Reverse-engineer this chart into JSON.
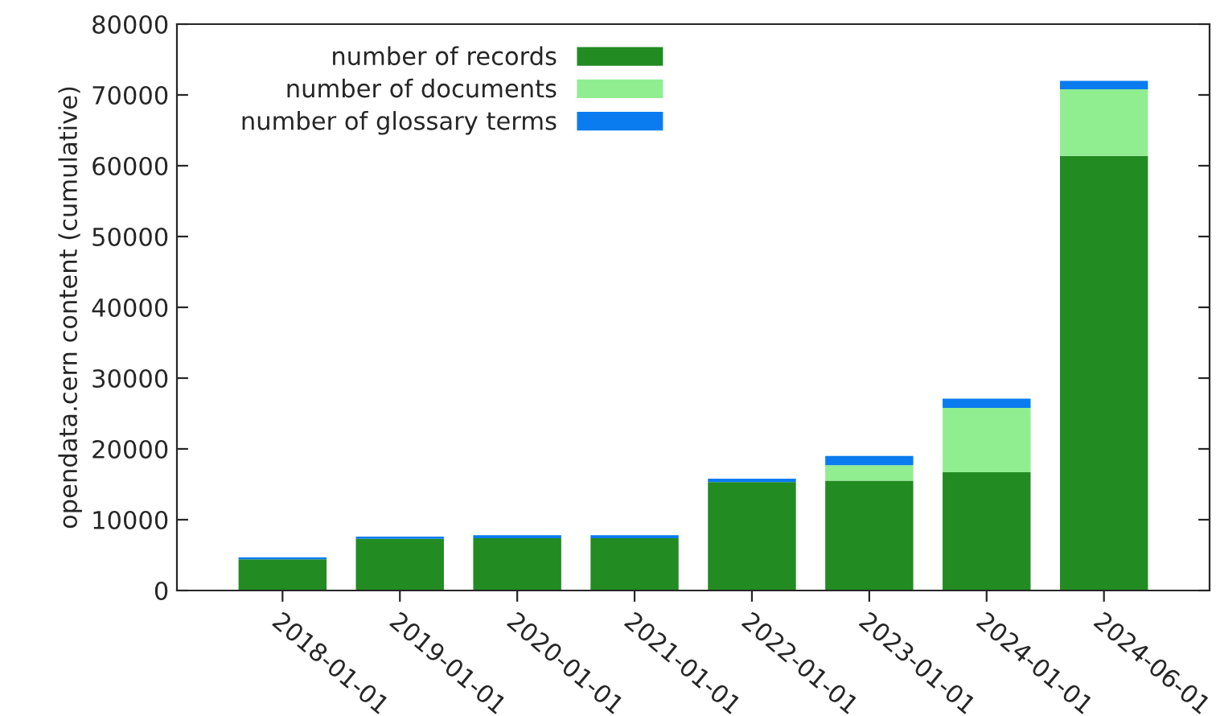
{
  "chart_data": {
    "type": "bar",
    "stacked": true,
    "ylabel": "opendata.cern content (cumulative)",
    "categories": [
      "2018-01-01",
      "2019-01-01",
      "2020-01-01",
      "2021-01-01",
      "2022-01-01",
      "2023-01-01",
      "2024-01-01",
      "2024-06-01"
    ],
    "series": [
      {
        "name": "number of records",
        "color": "#228b22",
        "values": [
          4400,
          7300,
          7400,
          7400,
          15300,
          15500,
          16700,
          61400
        ]
      },
      {
        "name": "number of documents",
        "color": "#90ee90",
        "values": [
          null,
          null,
          null,
          null,
          null,
          2200,
          9100,
          9400
        ]
      },
      {
        "name": "number of glossary terms",
        "color": "#0a7cf0",
        "values": [
          300,
          300,
          400,
          400,
          500,
          1300,
          1300,
          1200
        ]
      }
    ],
    "ylim": [
      0,
      80000
    ],
    "yticks": [
      0,
      10000,
      20000,
      30000,
      40000,
      50000,
      60000,
      70000,
      80000
    ],
    "grid": false,
    "legend": "top left"
  }
}
